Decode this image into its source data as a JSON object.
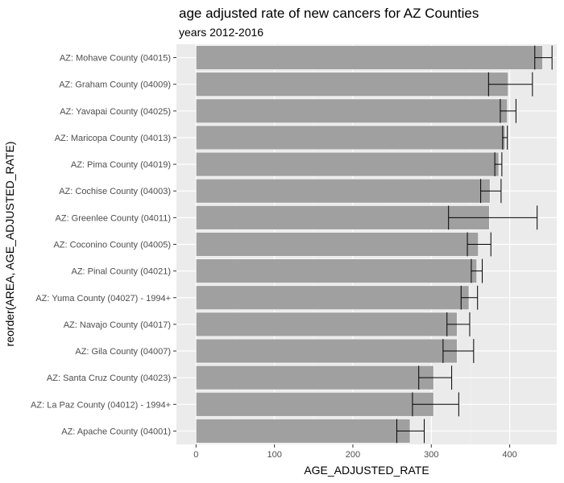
{
  "chart_data": {
    "type": "bar",
    "orientation": "horizontal",
    "title": "age adjusted rate of new cancers for AZ Counties",
    "subtitle": "years 2012-2016",
    "xlabel": "AGE_ADJUSTED_RATE",
    "ylabel": "reorder(AREA, AGE_ADJUSTED_RATE)",
    "xlim": [
      -25,
      460
    ],
    "xticks": [
      0,
      100,
      200,
      300,
      400
    ],
    "xtick_labels": [
      "0",
      "100",
      "200",
      "300",
      "400"
    ],
    "grid": true,
    "colors": {
      "panel": "#ebebeb",
      "grid_major": "#ffffff",
      "grid_minor": "#f5f5f5",
      "bar": "#a0a0a0",
      "bar_outline": "#ffffff",
      "errorbar": "#000000",
      "tick": "#4d4d4d"
    },
    "categories": [
      "AZ: Mohave County (04015)",
      "AZ: Graham County (04009)",
      "AZ: Yavapai County (04025)",
      "AZ: Maricopa County (04013)",
      "AZ: Pima County (04019)",
      "AZ: Cochise County (04003)",
      "AZ: Greenlee County (04011)",
      "AZ: Coconino County (04005)",
      "AZ: Pinal County (04021)",
      "AZ: Yuma County (04027) - 1994+",
      "AZ: Navajo County (04017)",
      "AZ: Gila County (04007)",
      "AZ: Santa Cruz County (04023)",
      "AZ: La Paz County (04012) - 1994+",
      "AZ: Apache County (04001)"
    ],
    "values": [
      442,
      398,
      397,
      394,
      386,
      375,
      374,
      360,
      358,
      348,
      333,
      333,
      303,
      303,
      273
    ],
    "lower": [
      432,
      373,
      388,
      391,
      381,
      363,
      322,
      346,
      351,
      338,
      320,
      315,
      284,
      276,
      256
    ],
    "upper": [
      454,
      429,
      408,
      397,
      390,
      389,
      435,
      376,
      365,
      359,
      349,
      354,
      326,
      335,
      291
    ]
  }
}
